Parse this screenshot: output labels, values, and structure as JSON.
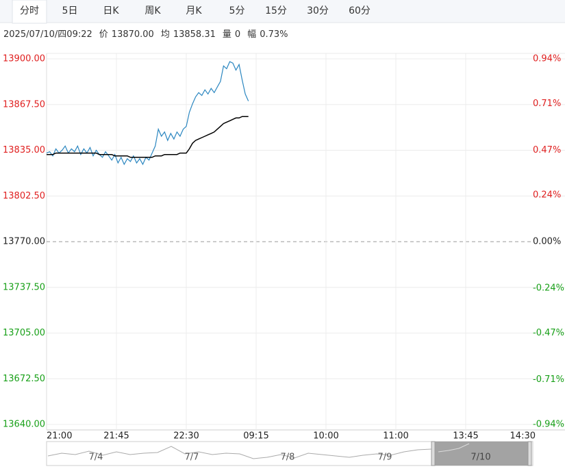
{
  "tabs": [
    "分时",
    "5日",
    "日K",
    "周K",
    "月K",
    "5分",
    "15分",
    "30分",
    "60分"
  ],
  "active_tab": 0,
  "info": [
    "2025/07/10/四09:22",
    "价",
    "13870.00",
    "均",
    "13858.31",
    "量",
    "0",
    "幅",
    "0.73%"
  ],
  "chart_data": {
    "type": "line",
    "x": [
      0,
      2,
      4,
      6,
      8,
      10,
      12,
      14,
      16,
      18,
      20,
      22,
      24,
      26,
      28,
      30,
      32,
      34,
      36,
      38,
      40,
      42,
      44,
      46,
      48,
      50,
      52,
      54,
      56,
      58,
      60,
      62,
      64,
      66,
      68,
      70,
      72,
      74,
      76,
      78,
      80,
      82,
      84,
      86,
      88,
      90,
      92,
      94,
      96,
      98,
      100,
      102,
      104,
      106,
      108,
      110,
      112,
      114,
      116,
      118,
      120,
      122,
      124,
      126,
      128,
      130
    ],
    "series": [
      {
        "color": "#2a86c0",
        "values": [
          13833,
          13834,
          13831,
          13836,
          13833,
          13835,
          13838,
          13833,
          13836,
          13834,
          13838,
          13832,
          13836,
          13833,
          13837,
          13831,
          13835,
          13832,
          13830,
          13834,
          13831,
          13828,
          13832,
          13826,
          13830,
          13825,
          13829,
          13827,
          13831,
          13826,
          13829,
          13825,
          13830,
          13828,
          13833,
          13838,
          13850,
          13845,
          13848,
          13842,
          13847,
          13843,
          13848,
          13845,
          13850,
          13852,
          13862,
          13868,
          13873,
          13876,
          13874,
          13878,
          13875,
          13879,
          13876,
          13880,
          13884,
          13895,
          13893,
          13898,
          13897,
          13892,
          13896,
          13885,
          13875,
          13870
        ]
      },
      {
        "color": "#000000",
        "values": [
          13832,
          13832,
          13832,
          13833,
          13833,
          13833,
          13833,
          13833,
          13833,
          13833,
          13833,
          13833,
          13833,
          13833,
          13833,
          13833,
          13833,
          13832,
          13832,
          13832,
          13832,
          13832,
          13831,
          13831,
          13831,
          13831,
          13831,
          13830,
          13830,
          13830,
          13830,
          13830,
          13830,
          13830,
          13830,
          13831,
          13831,
          13831,
          13832,
          13832,
          13832,
          13832,
          13832,
          13833,
          13833,
          13833,
          13836,
          13840,
          13842,
          13843,
          13844,
          13845,
          13846,
          13847,
          13848,
          13850,
          13852,
          13854,
          13855,
          13856,
          13857,
          13858,
          13858,
          13859,
          13859,
          13859
        ]
      }
    ],
    "xlim": [
      0,
      315
    ],
    "xticks": [
      {
        "value": 0,
        "label": "21:00"
      },
      {
        "value": 45,
        "label": "21:45"
      },
      {
        "value": 90,
        "label": "22:30"
      },
      {
        "value": 135,
        "label": "09:15"
      },
      {
        "value": 180,
        "label": "10:00"
      },
      {
        "value": 225,
        "label": "11:00"
      },
      {
        "value": 270,
        "label": "13:45"
      },
      {
        "value": 315,
        "label": "14:30"
      }
    ],
    "ylim": [
      13640,
      13900
    ],
    "yticks": [
      {
        "value": 13900,
        "label": "13900.00"
      },
      {
        "value": 13867.5,
        "label": "13867.50"
      },
      {
        "value": 13835,
        "label": "13835.00"
      },
      {
        "value": 13802.5,
        "label": "13802.50"
      },
      {
        "value": 13770,
        "label": "13770.00"
      },
      {
        "value": 13737.5,
        "label": "13737.50"
      },
      {
        "value": 13705,
        "label": "13705.00"
      },
      {
        "value": 13672.5,
        "label": "13672.50"
      },
      {
        "value": 13640,
        "label": "13640.00"
      }
    ],
    "y2lim": [
      -0.94,
      0.94
    ],
    "y2ticks": [
      {
        "value": 0.94,
        "label": "0.94%"
      },
      {
        "value": 0.71,
        "label": "0.71%"
      },
      {
        "value": 0.47,
        "label": "0.47%"
      },
      {
        "value": 0.24,
        "label": "0.24%"
      },
      {
        "value": 0,
        "label": "0.00%"
      },
      {
        "value": -0.24,
        "label": "-0.24%"
      },
      {
        "value": -0.47,
        "label": "-0.47%"
      },
      {
        "value": -0.71,
        "label": "-0.71%"
      },
      {
        "value": -0.94,
        "label": "-0.94%"
      }
    ],
    "reference_line": 13770,
    "up_color": "#e02020",
    "down_color": "#18a018",
    "flat_color": "#222222",
    "grid": true
  },
  "navigator": {
    "labels": [
      "7/4",
      "7/7",
      "7/8",
      "7/9",
      "7/10"
    ],
    "selected": 4
  }
}
